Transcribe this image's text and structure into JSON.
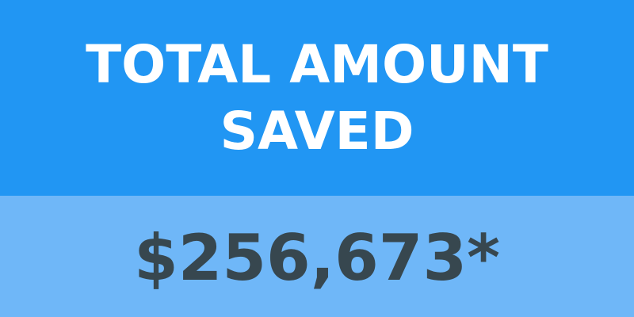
{
  "card": {
    "title_line1": "TOTAL AMOUNT",
    "title_line2": "SAVED",
    "amount": "$256,673*"
  },
  "colors": {
    "header_bg": "#2196f3",
    "footer_bg": "#6fb7f8",
    "title_text": "#ffffff",
    "amount_text": "#37474f"
  }
}
